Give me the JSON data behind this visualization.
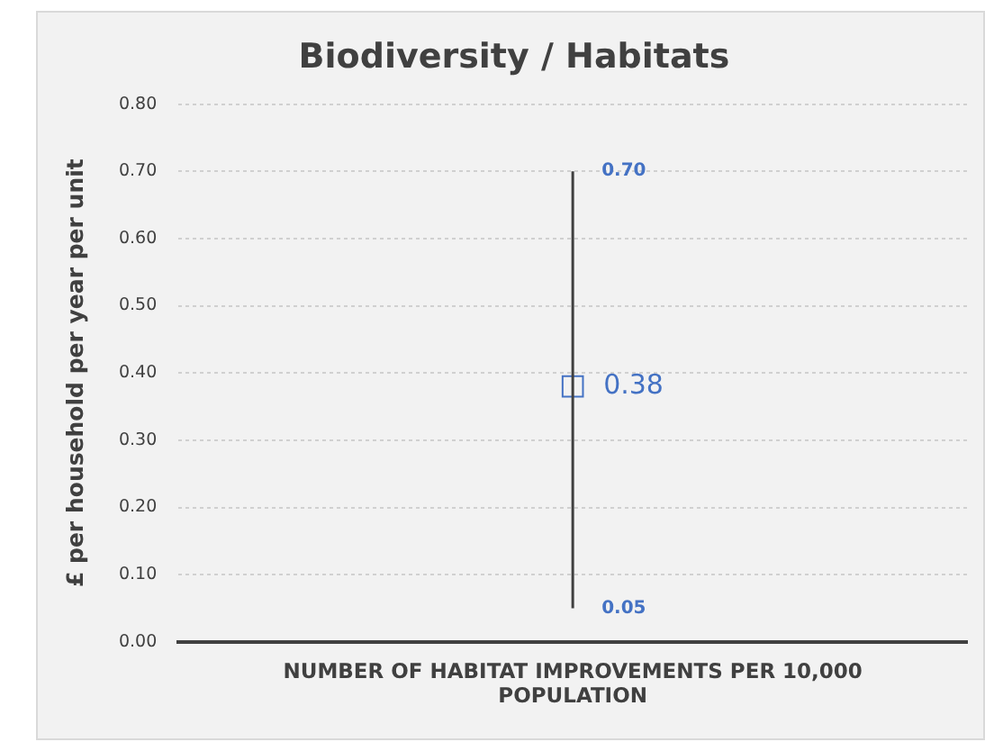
{
  "chart_data": {
    "type": "scatter",
    "title": "Biodiversity / Habitats",
    "ylabel": "£ per household per year per unit",
    "categories": [
      "NUMBER OF HABITAT IMPROVEMENTS PER 10,000 POPULATION"
    ],
    "series": [
      {
        "color": "#4472c4",
        "values": [
          0.38
        ],
        "errors": [
          [
            0.05,
            0.7
          ]
        ]
      }
    ],
    "data_labels": true,
    "annotations": [
      {
        "text": "0.70",
        "x": "NUMBER OF HABITAT IMPROVEMENTS PER 10,000 POPULATION",
        "y": 0.7
      },
      {
        "text": "0.05",
        "x": "NUMBER OF HABITAT IMPROVEMENTS PER 10,000 POPULATION",
        "y": 0.05
      }
    ],
    "ylim": [
      0,
      0.8
    ],
    "yticks": [
      {
        "value": 0,
        "label": "0.00"
      },
      {
        "value": 0.1,
        "label": "0.10"
      },
      {
        "value": 0.2,
        "label": "0.20"
      },
      {
        "value": 0.3,
        "label": "0.30"
      },
      {
        "value": 0.4,
        "label": "0.40"
      },
      {
        "value": 0.5,
        "label": "0.50"
      },
      {
        "value": 0.6,
        "label": "0.60"
      },
      {
        "value": 0.7,
        "label": "0.70"
      },
      {
        "value": 0.8,
        "label": "0.80"
      }
    ],
    "grid": "y",
    "marker": "square",
    "legend": false
  }
}
